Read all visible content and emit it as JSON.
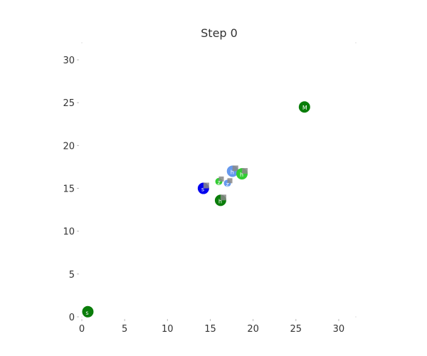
{
  "chart_data": {
    "type": "scatter",
    "title": "Step 0",
    "xlabel": "",
    "ylabel": "",
    "xlim": [
      0,
      32
    ],
    "ylim": [
      0,
      32
    ],
    "grid": false,
    "x_ticks": [
      "0",
      "5",
      "10",
      "15",
      "20",
      "25",
      "30"
    ],
    "y_ticks": [
      "0",
      "5",
      "10",
      "15",
      "20",
      "25",
      "30"
    ],
    "points": [
      {
        "x": 0.7,
        "y": 0.6,
        "label": "s",
        "color": "#0a7d0a",
        "badge": false
      },
      {
        "x": 26.0,
        "y": 24.5,
        "label": "M",
        "color": "#0a7d0a",
        "badge": false
      },
      {
        "x": 14.2,
        "y": 15.0,
        "label": "s",
        "color": "#0000ee",
        "badge": true
      },
      {
        "x": 16.2,
        "y": 13.6,
        "label": "h",
        "color": "#0a7d0a",
        "badge": true
      },
      {
        "x": 17.6,
        "y": 17.0,
        "label": "h",
        "color": "#6699ee",
        "badge": true
      },
      {
        "x": 18.7,
        "y": 16.7,
        "label": "h",
        "color": "#33cc33",
        "badge": true
      },
      {
        "x": 16.0,
        "y": 15.8,
        "label": "z",
        "color": "#33cc33",
        "badge": true,
        "small": true
      },
      {
        "x": 17.0,
        "y": 15.6,
        "label": "z",
        "color": "#6699ee",
        "badge": true,
        "small": true
      }
    ]
  }
}
